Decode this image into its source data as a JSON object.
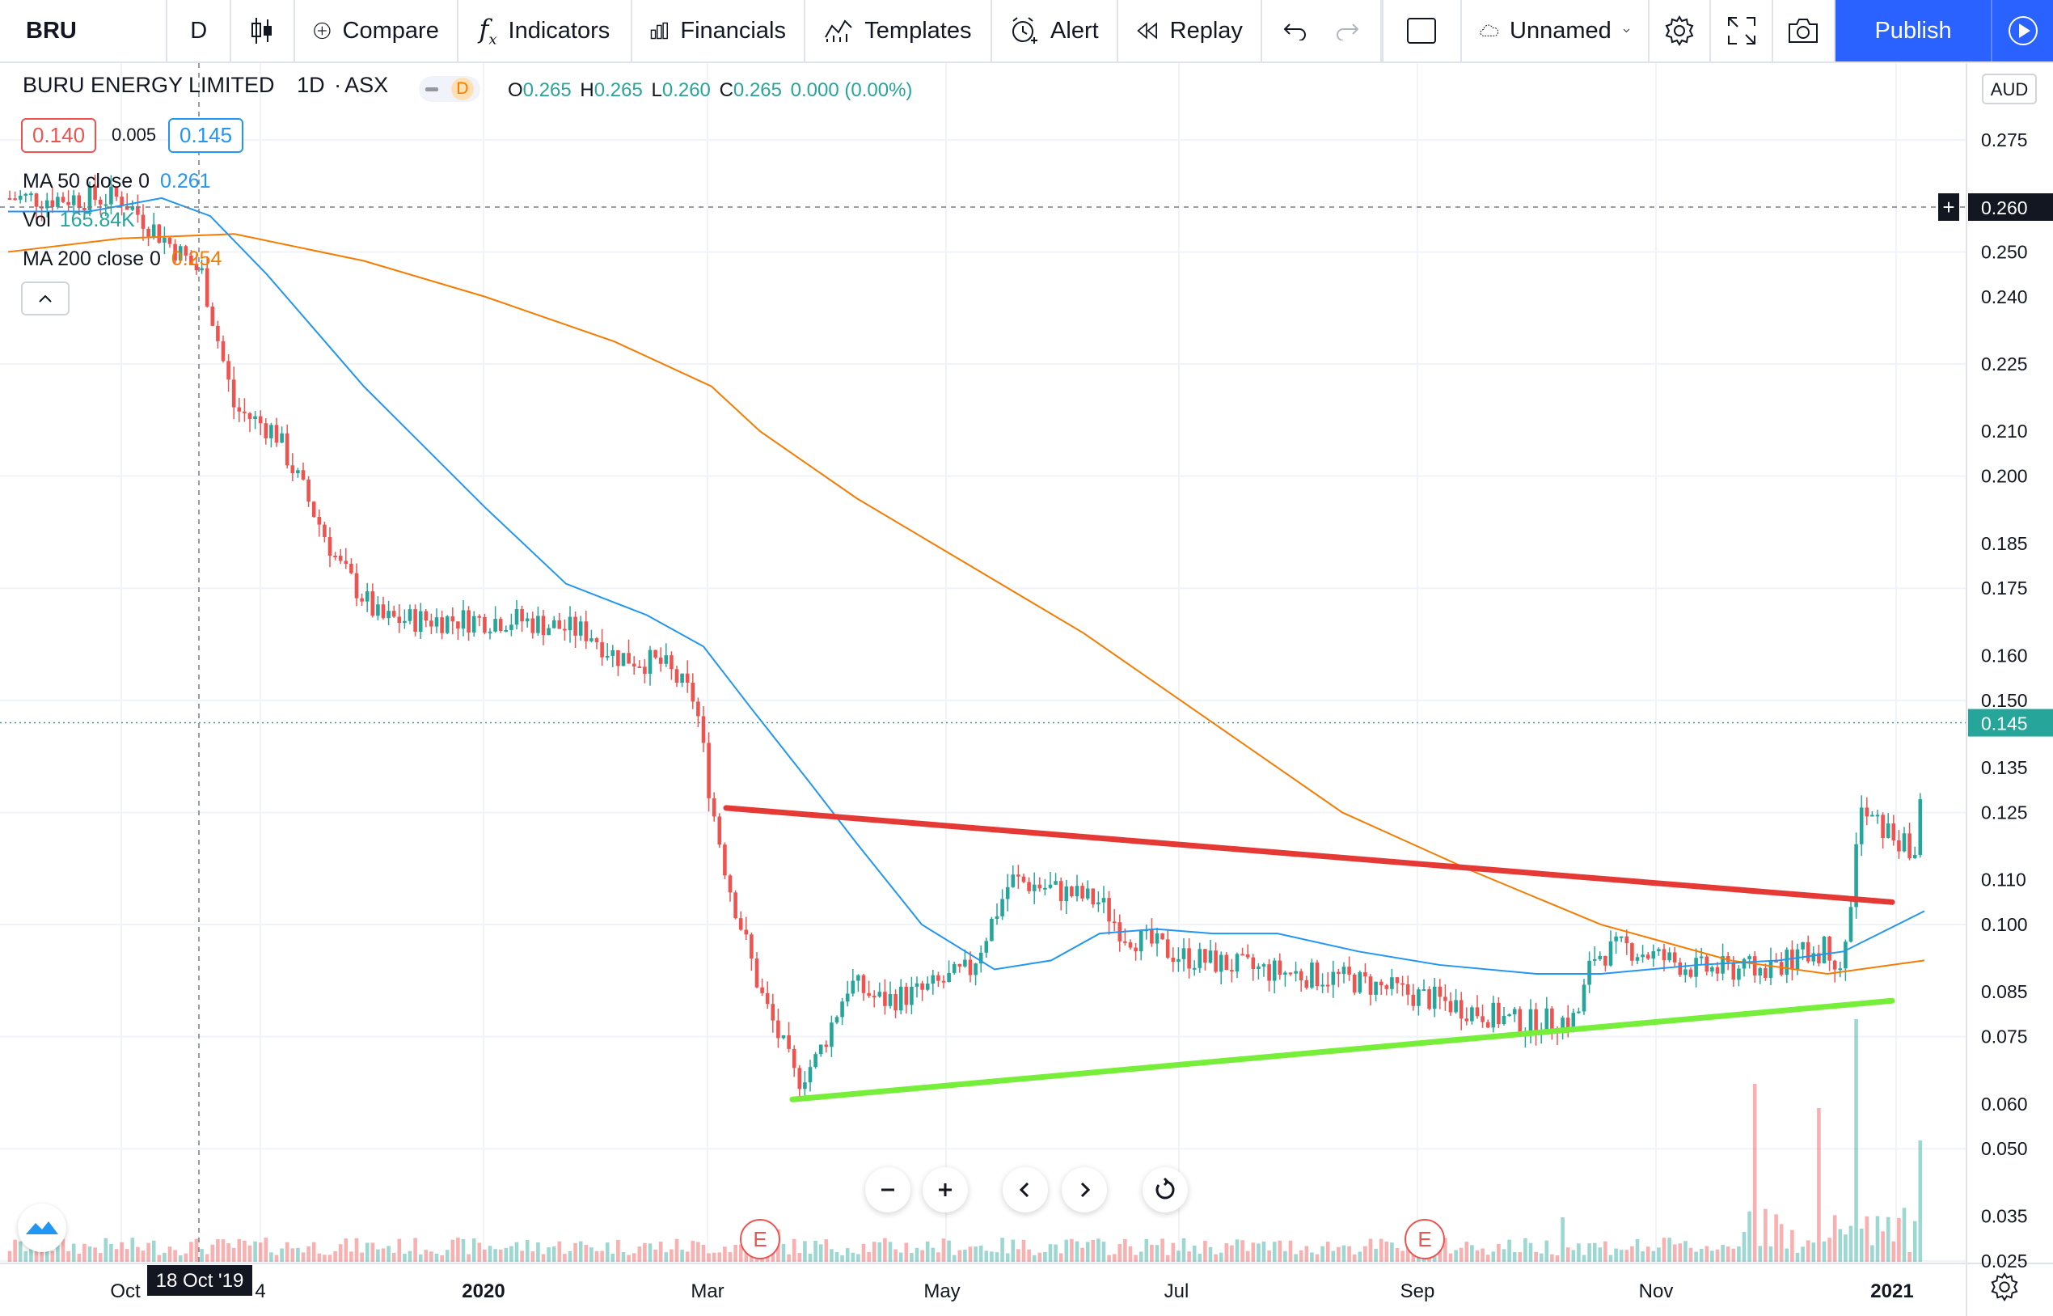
{
  "toolbar": {
    "symbol": "BRU",
    "interval": "D",
    "compare": "Compare",
    "indicators": "Indicators",
    "financials": "Financials",
    "templates": "Templates",
    "alert": "Alert",
    "replay": "Replay",
    "layout_name": "Unnamed",
    "publish": "Publish"
  },
  "legend": {
    "title": "BURU ENERGY LIMITED",
    "timeframe": "1D",
    "exchange": "ASX",
    "badge": "D",
    "ohlc": {
      "o_label": "O",
      "o": "0.265",
      "h_label": "H",
      "h": "0.265",
      "l_label": "L",
      "l": "0.260",
      "c_label": "C",
      "c": "0.265",
      "change": "0.000 (0.00%)"
    },
    "bid": "0.140",
    "spread": "0.005",
    "ask": "0.145",
    "ma50_label": "MA 50 close 0",
    "ma50_value": "0.261",
    "vol_label": "Vol",
    "vol_value": "165.84K",
    "ma200_label": "MA 200 close 0",
    "ma200_value": "0.254"
  },
  "colors": {
    "up": "#26a69a",
    "down": "#ef5350",
    "ma50": "#2196f3",
    "ma200": "#f57c00",
    "resistance": "#e53935",
    "support": "#76ee3a",
    "accent": "#2962ff"
  },
  "price_axis": {
    "currency": "AUD",
    "labels": [
      "0.275",
      "0.260",
      "0.250",
      "0.240",
      "0.225",
      "0.210",
      "0.200",
      "0.185",
      "0.175",
      "0.160",
      "0.150",
      "0.145",
      "0.135",
      "0.125",
      "0.110",
      "0.100",
      "0.085",
      "0.075",
      "0.060",
      "0.050",
      "0.035",
      "0.025"
    ],
    "crosshair_price": "0.260",
    "last_price": "0.145"
  },
  "time_axis": {
    "labels": [
      "Oct",
      "4",
      "2020",
      "Mar",
      "May",
      "Jul",
      "Sep",
      "Nov",
      "2021"
    ],
    "crosshair_date": "18 Oct '19"
  },
  "events": [
    "E",
    "E"
  ],
  "chart_data": {
    "type": "candlestick",
    "title": "BURU ENERGY LIMITED",
    "timeframe": "1D",
    "currency": "AUD",
    "ylim": [
      0.025,
      0.28
    ],
    "x_ticks": [
      "Oct",
      "2020",
      "Mar",
      "May",
      "Jul",
      "Sep",
      "Nov",
      "2021"
    ],
    "approx_close_path": [
      {
        "x": "Oct '19",
        "close": 0.262
      },
      {
        "x": "Nov '19",
        "close": 0.21
      },
      {
        "x": "Dec '19",
        "close": 0.17
      },
      {
        "x": "Jan '20",
        "close": 0.168
      },
      {
        "x": "Feb '20",
        "close": 0.155
      },
      {
        "x": "Mar '20",
        "close": 0.12
      },
      {
        "x": "Apr '20",
        "close": 0.07
      },
      {
        "x": "May '20",
        "close": 0.09
      },
      {
        "x": "Jun '20",
        "close": 0.11
      },
      {
        "x": "Jul '20",
        "close": 0.092
      },
      {
        "x": "Aug '20",
        "close": 0.088
      },
      {
        "x": "Sep '20",
        "close": 0.083
      },
      {
        "x": "Oct '20",
        "close": 0.095
      },
      {
        "x": "Nov '20",
        "close": 0.09
      },
      {
        "x": "Dec '20",
        "close": 0.092
      },
      {
        "x": "Jan '21",
        "close": 0.145
      }
    ],
    "trendlines": [
      {
        "name": "resistance",
        "from": {
          "x": "Mar '20",
          "y": 0.126
        },
        "to": {
          "x": "Jan '21",
          "y": 0.105
        }
      },
      {
        "name": "support",
        "from": {
          "x": "Mar '20",
          "y": 0.06
        },
        "to": {
          "x": "Jan '21",
          "y": 0.083
        }
      }
    ],
    "series": [
      {
        "name": "MA 50 close 0",
        "last": 0.261
      },
      {
        "name": "MA 200 close 0",
        "last": 0.254
      },
      {
        "name": "Vol",
        "last": "165.84K"
      }
    ]
  }
}
